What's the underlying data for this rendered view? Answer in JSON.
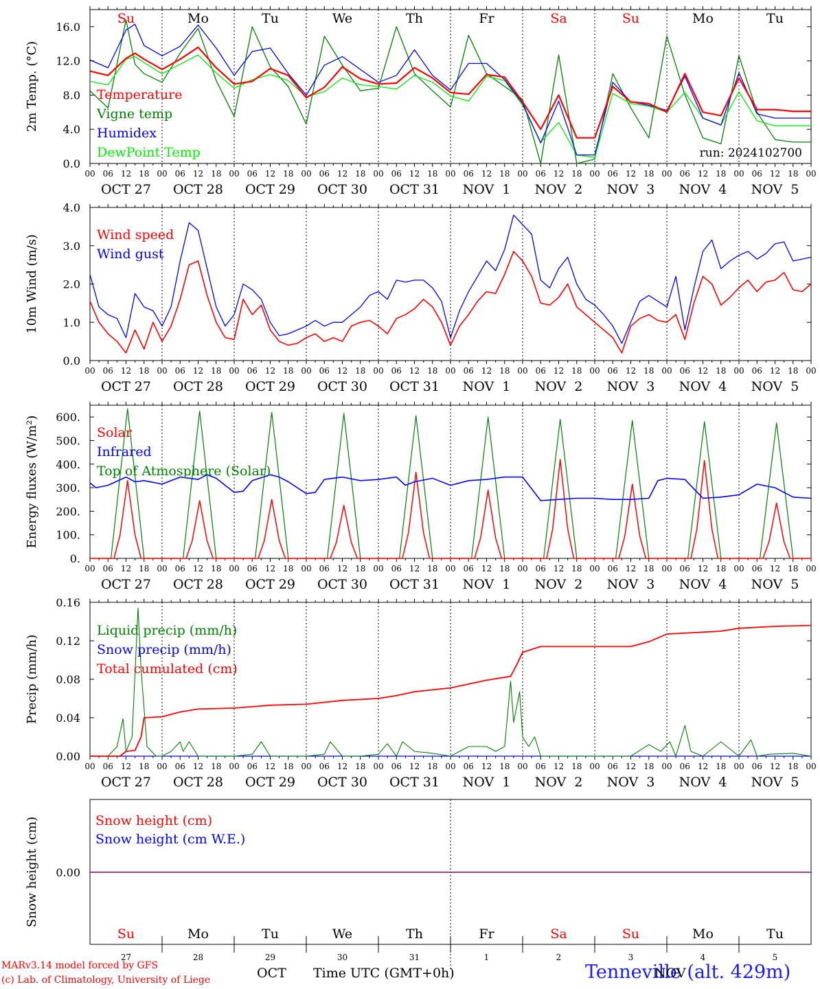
{
  "days": [
    "Su",
    "Mo",
    "Tu",
    "We",
    "Th",
    "Fr",
    "Sa",
    "Su",
    "Mo",
    "Tu"
  ],
  "weekend_days": [
    0,
    6,
    7
  ],
  "date_labels": [
    "OCT 27",
    "OCT 28",
    "OCT 29",
    "OCT 30",
    "OCT 31",
    "NOV  1",
    "NOV  2",
    "NOV  3",
    "NOV  4",
    "NOV  5"
  ],
  "hour_ticks": [
    "00",
    "06",
    "12",
    "18"
  ],
  "day_numbers": [
    "27",
    "28",
    "29",
    "30",
    "31",
    "1",
    "2",
    "3",
    "4",
    "5"
  ],
  "month_labels": [
    "OCT",
    "NOV"
  ],
  "colors": {
    "red": "#ff0000",
    "darkgreen": "#008000",
    "blue": "#0000ff",
    "lightgreen": "#00ee00",
    "purple": "#800080",
    "station": "#1a1aff"
  },
  "footer": {
    "model": "MARv3.14 model forced by GFS",
    "lab": "(c) Lab. of Climatology, University of Liege",
    "time": "Time UTC (GMT+0h)",
    "station": "Tenneville (alt. 429m)"
  },
  "chart_data": [
    {
      "type": "line",
      "id": "temp",
      "ylabel": "2m Temp. (°C)",
      "ylim": [
        0,
        18
      ],
      "yticks": [
        "0.0",
        "4.0",
        "8.0",
        "12.0",
        "16.0"
      ],
      "ytick_values": [
        0,
        4,
        8,
        12,
        16
      ],
      "run": "run: 2024102700",
      "x_unit": "hours since 2024-10-27 00 UTC",
      "x": [
        0,
        6,
        12,
        15,
        18,
        24,
        30,
        36,
        42,
        48,
        54,
        60,
        66,
        72,
        78,
        84,
        90,
        96,
        102,
        108,
        114,
        120,
        126,
        132,
        138,
        144,
        150,
        156,
        162,
        168,
        174,
        180,
        186,
        192,
        198,
        204,
        210,
        216,
        222,
        228,
        234,
        240
      ],
      "series": [
        {
          "name": "Temperature",
          "color": "red",
          "values": [
            10.8,
            10.3,
            12.3,
            12.9,
            12.2,
            11.0,
            12.2,
            13.6,
            11.2,
            9.3,
            9.6,
            11.1,
            10.3,
            7.7,
            8.9,
            11.3,
            9.9,
            9.3,
            9.4,
            11.2,
            10.0,
            8.3,
            8.1,
            10.4,
            10.1,
            7.2,
            4.0,
            8.0,
            3.0,
            3.0,
            9.0,
            7.2,
            7.0,
            6.0,
            10.5,
            6.0,
            5.6,
            10.0,
            6.3,
            6.3,
            6.1,
            6.1
          ]
        },
        {
          "name": "Vigne temp",
          "color": "darkgreen",
          "values": [
            8.5,
            6.5,
            16.8,
            11.6,
            10.5,
            9.5,
            12.9,
            15.8,
            9.7,
            5.5,
            16.0,
            11.3,
            9.0,
            4.6,
            14.9,
            11.5,
            8.5,
            8.8,
            16.0,
            10.5,
            8.5,
            6.6,
            15.0,
            10.5,
            9.0,
            7.5,
            -1.0,
            12.7,
            -1.0,
            0.5,
            10.5,
            6.5,
            3.0,
            14.9,
            8.0,
            3.0,
            2.3,
            12.6,
            6.0,
            2.8,
            2.5,
            2.5
          ]
        },
        {
          "name": "Humidex",
          "color": "blue",
          "values": [
            12.1,
            11.2,
            15.6,
            16.3,
            13.8,
            12.6,
            13.7,
            16.2,
            13.5,
            10.3,
            13.1,
            13.5,
            10.5,
            8.0,
            11.5,
            12.5,
            11.0,
            9.5,
            10.3,
            13.3,
            10.3,
            8.6,
            11.7,
            11.7,
            9.8,
            7.0,
            2.4,
            7.3,
            1.0,
            1.0,
            9.5,
            7.2,
            6.8,
            6.2,
            10.2,
            5.3,
            4.5,
            10.6,
            5.8,
            5.3,
            5.3,
            5.3
          ]
        },
        {
          "name": "DewPoint Temp",
          "color": "lightgreen",
          "values": [
            9.6,
            9.2,
            12.2,
            12.5,
            11.8,
            10.5,
            11.6,
            12.7,
            10.6,
            8.8,
            9.8,
            10.4,
            9.7,
            7.8,
            8.4,
            10.0,
            9.2,
            9.0,
            8.7,
            10.3,
            9.5,
            7.9,
            7.3,
            10.2,
            9.7,
            6.8,
            2.5,
            4.8,
            1.0,
            0.7,
            8.2,
            7.0,
            6.7,
            6.0,
            8.3,
            5.3,
            4.5,
            8.4,
            5.0,
            4.4,
            4.4,
            4.4
          ]
        }
      ]
    },
    {
      "type": "line",
      "id": "wind",
      "ylabel": "10m Wind (m/s)",
      "ylim": [
        0,
        4
      ],
      "yticks": [
        "0.0",
        "1.0",
        "2.0",
        "3.0",
        "4.0"
      ],
      "ytick_values": [
        0,
        1,
        2,
        3,
        4
      ],
      "x_unit": "hours since 2024-10-27 00 UTC",
      "x": [
        0,
        3,
        6,
        9,
        12,
        15,
        18,
        21,
        24,
        27,
        30,
        33,
        36,
        39,
        42,
        45,
        48,
        51,
        54,
        57,
        60,
        63,
        66,
        69,
        72,
        75,
        78,
        81,
        84,
        87,
        90,
        93,
        96,
        99,
        102,
        105,
        108,
        111,
        114,
        117,
        120,
        123,
        126,
        129,
        132,
        135,
        138,
        141,
        144,
        147,
        150,
        153,
        156,
        159,
        162,
        165,
        168,
        171,
        174,
        177,
        180,
        183,
        186,
        189,
        192,
        195,
        198,
        201,
        204,
        207,
        210,
        213,
        216,
        219,
        222,
        225,
        228,
        231,
        234,
        237,
        240
      ],
      "series": [
        {
          "name": "Wind speed",
          "color": "red",
          "values": [
            1.55,
            1.0,
            0.7,
            0.5,
            0.2,
            0.8,
            0.3,
            1.0,
            0.5,
            0.9,
            1.6,
            2.5,
            2.6,
            1.7,
            1.0,
            0.6,
            0.55,
            1.6,
            1.2,
            1.45,
            0.8,
            0.5,
            0.4,
            0.45,
            0.6,
            0.7,
            0.5,
            0.6,
            0.5,
            0.9,
            1.0,
            1.05,
            0.9,
            0.7,
            1.1,
            1.2,
            1.35,
            1.6,
            1.4,
            1.0,
            0.4,
            0.9,
            1.2,
            1.55,
            1.8,
            1.75,
            2.25,
            2.85,
            2.6,
            2.2,
            1.5,
            1.45,
            1.65,
            2.0,
            1.4,
            1.2,
            1.0,
            0.8,
            0.6,
            0.2,
            0.9,
            1.1,
            1.2,
            1.05,
            1.0,
            1.2,
            0.55,
            1.5,
            2.2,
            2.0,
            1.45,
            1.65,
            1.9,
            2.1,
            1.8,
            2.05,
            2.1,
            2.3,
            1.85,
            1.8,
            2.0
          ]
        },
        {
          "name": "Wind gust",
          "color": "blue",
          "values": [
            2.25,
            1.4,
            1.2,
            1.1,
            0.6,
            1.75,
            1.4,
            1.3,
            0.9,
            1.4,
            2.6,
            3.6,
            3.4,
            2.4,
            1.4,
            0.9,
            1.2,
            2.0,
            1.85,
            1.6,
            1.0,
            0.65,
            0.7,
            0.8,
            0.9,
            1.05,
            0.9,
            1.0,
            1.0,
            1.2,
            1.4,
            1.7,
            1.8,
            1.6,
            2.1,
            2.05,
            2.1,
            2.1,
            1.9,
            1.55,
            0.6,
            1.3,
            1.8,
            2.2,
            2.6,
            2.35,
            2.9,
            3.8,
            3.55,
            3.3,
            2.1,
            1.9,
            2.4,
            2.7,
            2.0,
            1.6,
            1.45,
            1.2,
            0.9,
            0.45,
            1.0,
            1.55,
            1.7,
            1.55,
            1.4,
            2.2,
            0.8,
            1.9,
            2.85,
            3.15,
            2.4,
            2.6,
            2.75,
            2.85,
            2.65,
            2.8,
            3.05,
            3.1,
            2.6,
            2.65,
            2.7
          ]
        }
      ]
    },
    {
      "type": "line",
      "id": "energy",
      "ylabel": "Energy fluxes (W/m²)",
      "ylim": [
        0,
        650
      ],
      "yticks": [
        "0.",
        "100.",
        "200.",
        "300.",
        "400.",
        "500.",
        "600."
      ],
      "ytick_values": [
        0,
        100,
        200,
        300,
        400,
        500,
        600
      ],
      "x_unit": "hours since 2024-10-27 00 UTC",
      "series": [
        {
          "name": "Solar",
          "color": "red",
          "peaks": [
            330,
            245,
            250,
            225,
            365,
            290,
            420,
            315,
            415,
            235
          ]
        },
        {
          "name": "Infrared",
          "color": "blue",
          "x": [
            0,
            2,
            6,
            12,
            15,
            18,
            24,
            30,
            36,
            39,
            42,
            48,
            51,
            54,
            60,
            63,
            66,
            72,
            75,
            78,
            84,
            90,
            96,
            102,
            105,
            108,
            114,
            120,
            126,
            132,
            138,
            144,
            150,
            156,
            162,
            168,
            174,
            180,
            186,
            189,
            192,
            198,
            204,
            210,
            216,
            222,
            228,
            234,
            240
          ],
          "values": [
            320,
            300,
            310,
            345,
            325,
            330,
            315,
            345,
            335,
            355,
            340,
            280,
            285,
            330,
            355,
            345,
            325,
            275,
            280,
            335,
            345,
            330,
            335,
            345,
            310,
            325,
            340,
            310,
            330,
            335,
            345,
            345,
            245,
            250,
            255,
            255,
            250,
            250,
            255,
            330,
            340,
            335,
            255,
            260,
            270,
            315,
            300,
            260,
            255
          ]
        },
        {
          "name": "Top of Atmosphere (Solar)",
          "color": "darkgreen",
          "peaks": [
            635,
            625,
            620,
            615,
            605,
            600,
            590,
            585,
            580,
            575
          ]
        }
      ]
    },
    {
      "type": "line",
      "id": "precip",
      "ylabel": "Precip (mm/h)",
      "ylim": [
        0,
        0.16
      ],
      "yticks": [
        "0.00",
        "0.04",
        "0.08",
        "0.12",
        "0.16"
      ],
      "ytick_values": [
        0,
        0.04,
        0.08,
        0.12,
        0.16
      ],
      "x_unit": "hours since 2024-10-27 00 UTC",
      "series": [
        {
          "name": "Liquid precip (mm/h)",
          "color": "darkgreen",
          "x": [
            0,
            6,
            9,
            11,
            12,
            14,
            16,
            17,
            19,
            22,
            24,
            27,
            30,
            31,
            33,
            36,
            39,
            42,
            48,
            54,
            57,
            60,
            66,
            72,
            78,
            80,
            84,
            90,
            96,
            99,
            102,
            104,
            108,
            114,
            120,
            126,
            132,
            135,
            138,
            140,
            141,
            143,
            144,
            146,
            148,
            150,
            156,
            162,
            174,
            180,
            186,
            190,
            193,
            195,
            198,
            200,
            204,
            210,
            216,
            220,
            222,
            226,
            234,
            240
          ],
          "values": [
            0,
            0,
            0.01,
            0.039,
            0.005,
            0.02,
            0.154,
            0.09,
            0.01,
            0,
            0,
            0.005,
            0.015,
            0.005,
            0.015,
            0,
            0,
            0,
            0,
            0.002,
            0.015,
            0,
            0,
            0,
            0.002,
            0.015,
            0,
            0,
            0.002,
            0.013,
            0,
            0.015,
            0.005,
            0.003,
            0,
            0.01,
            0.01,
            0.005,
            0.01,
            0.078,
            0.035,
            0.067,
            0.02,
            0.01,
            0.02,
            0,
            0,
            0,
            0,
            0,
            0.012,
            0.005,
            0.015,
            0,
            0.032,
            0.005,
            0,
            0.015,
            0,
            0.017,
            0,
            0.002,
            0.003,
            0
          ]
        },
        {
          "name": "Snow precip (mm/h)",
          "color": "blue",
          "x": [
            0,
            240
          ],
          "values": [
            0,
            0
          ]
        },
        {
          "name": "Total cumulated (cm)",
          "color": "red",
          "x": [
            0,
            10,
            12,
            15,
            17,
            18,
            24,
            30,
            36,
            48,
            60,
            72,
            84,
            96,
            102,
            108,
            120,
            132,
            140,
            142,
            144,
            150,
            168,
            180,
            186,
            192,
            210,
            216,
            228,
            240
          ],
          "values": [
            0,
            0,
            0.005,
            0.006,
            0.02,
            0.04,
            0.041,
            0.046,
            0.049,
            0.05,
            0.053,
            0.054,
            0.058,
            0.06,
            0.063,
            0.067,
            0.071,
            0.079,
            0.083,
            0.095,
            0.108,
            0.114,
            0.114,
            0.114,
            0.119,
            0.127,
            0.13,
            0.133,
            0.135,
            0.136
          ]
        }
      ]
    },
    {
      "type": "line",
      "id": "snow",
      "ylabel": "Snow height (cm)",
      "ylim": [
        -0.001,
        0.001
      ],
      "yticks": [
        "0.00"
      ],
      "ytick_values": [
        0
      ],
      "x_unit": "hours since 2024-10-27 00 UTC",
      "series": [
        {
          "name": "Snow height (cm)",
          "color": "red",
          "x": [
            0,
            240
          ],
          "values": [
            0,
            0
          ]
        },
        {
          "name": "Snow height (cm W.E.)",
          "color": "blue",
          "x": [
            0,
            240
          ],
          "values": [
            0,
            0
          ]
        }
      ]
    }
  ]
}
